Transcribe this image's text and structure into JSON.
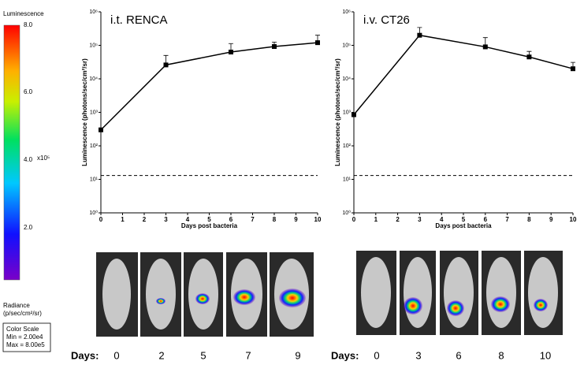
{
  "chart_data": [
    {
      "type": "line",
      "title": "i.t. RENCA",
      "x_label": "Days post bacteria",
      "y_label": "Luminescence (photons/sec/cm²/sr)",
      "x": [
        0,
        3,
        6,
        8,
        10
      ],
      "series": [
        {
          "color": "#000000",
          "values": [
            300,
            26000,
            63000,
            92000,
            120000
          ],
          "errors": [
            0,
            24000,
            50000,
            33000,
            80000
          ]
        }
      ],
      "threshold": 13,
      "log_y": true,
      "xlim": [
        0,
        10
      ],
      "xticks": [
        0,
        1,
        2,
        3,
        4,
        5,
        6,
        7,
        8,
        9,
        10
      ],
      "ylim": [
        1,
        1000000
      ],
      "yticks": [
        {
          "value": 1,
          "label": "10⁰"
        },
        {
          "value": 10,
          "label": "10¹"
        },
        {
          "value": 100,
          "label": "10²"
        },
        {
          "value": 1000,
          "label": "10³"
        },
        {
          "value": 10000,
          "label": "10⁴"
        },
        {
          "value": 100000,
          "label": "10⁵"
        },
        {
          "value": 1000000,
          "label": "10⁶"
        }
      ]
    },
    {
      "type": "line",
      "title": "i.v. CT26",
      "x_label": "Days post bacteria",
      "y_label": "Luminescence (photons/sec/cm²/sr)",
      "x": [
        0,
        3,
        6,
        8,
        10
      ],
      "series": [
        {
          "color": "#000000",
          "values": [
            850,
            200000,
            90000,
            45000,
            20000
          ],
          "errors": [
            0,
            140000,
            80000,
            21000,
            11000
          ]
        }
      ],
      "threshold": 13,
      "log_y": true,
      "xlim": [
        0,
        10
      ],
      "xticks": [
        0,
        1,
        2,
        3,
        4,
        5,
        6,
        7,
        8,
        9,
        10
      ],
      "ylim": [
        1,
        1000000
      ],
      "yticks": [
        {
          "value": 1,
          "label": "10⁰"
        },
        {
          "value": 10,
          "label": "10¹"
        },
        {
          "value": 100,
          "label": "10²"
        },
        {
          "value": 1000,
          "label": "10³"
        },
        {
          "value": 10000,
          "label": "10⁴"
        },
        {
          "value": 100000,
          "label": "10⁵"
        },
        {
          "value": 1000000,
          "label": "10⁶"
        }
      ]
    }
  ],
  "color_scale": {
    "title": "Luminescence",
    "ticks": [
      "8.0",
      "6.0",
      "4.0",
      "2.0"
    ],
    "multiplier": "x10⁵",
    "unit_title": "Radiance",
    "unit": "(p/sec/cm²/sr)",
    "box": [
      "Color Scale",
      "Min = 2.00e4",
      "Max = 8.00e5"
    ]
  },
  "images": [
    {
      "label": "Days:",
      "days": [
        "0",
        "2",
        "5",
        "7",
        "9"
      ]
    },
    {
      "label": "Days:",
      "days": [
        "0",
        "3",
        "6",
        "8",
        "10"
      ]
    }
  ]
}
